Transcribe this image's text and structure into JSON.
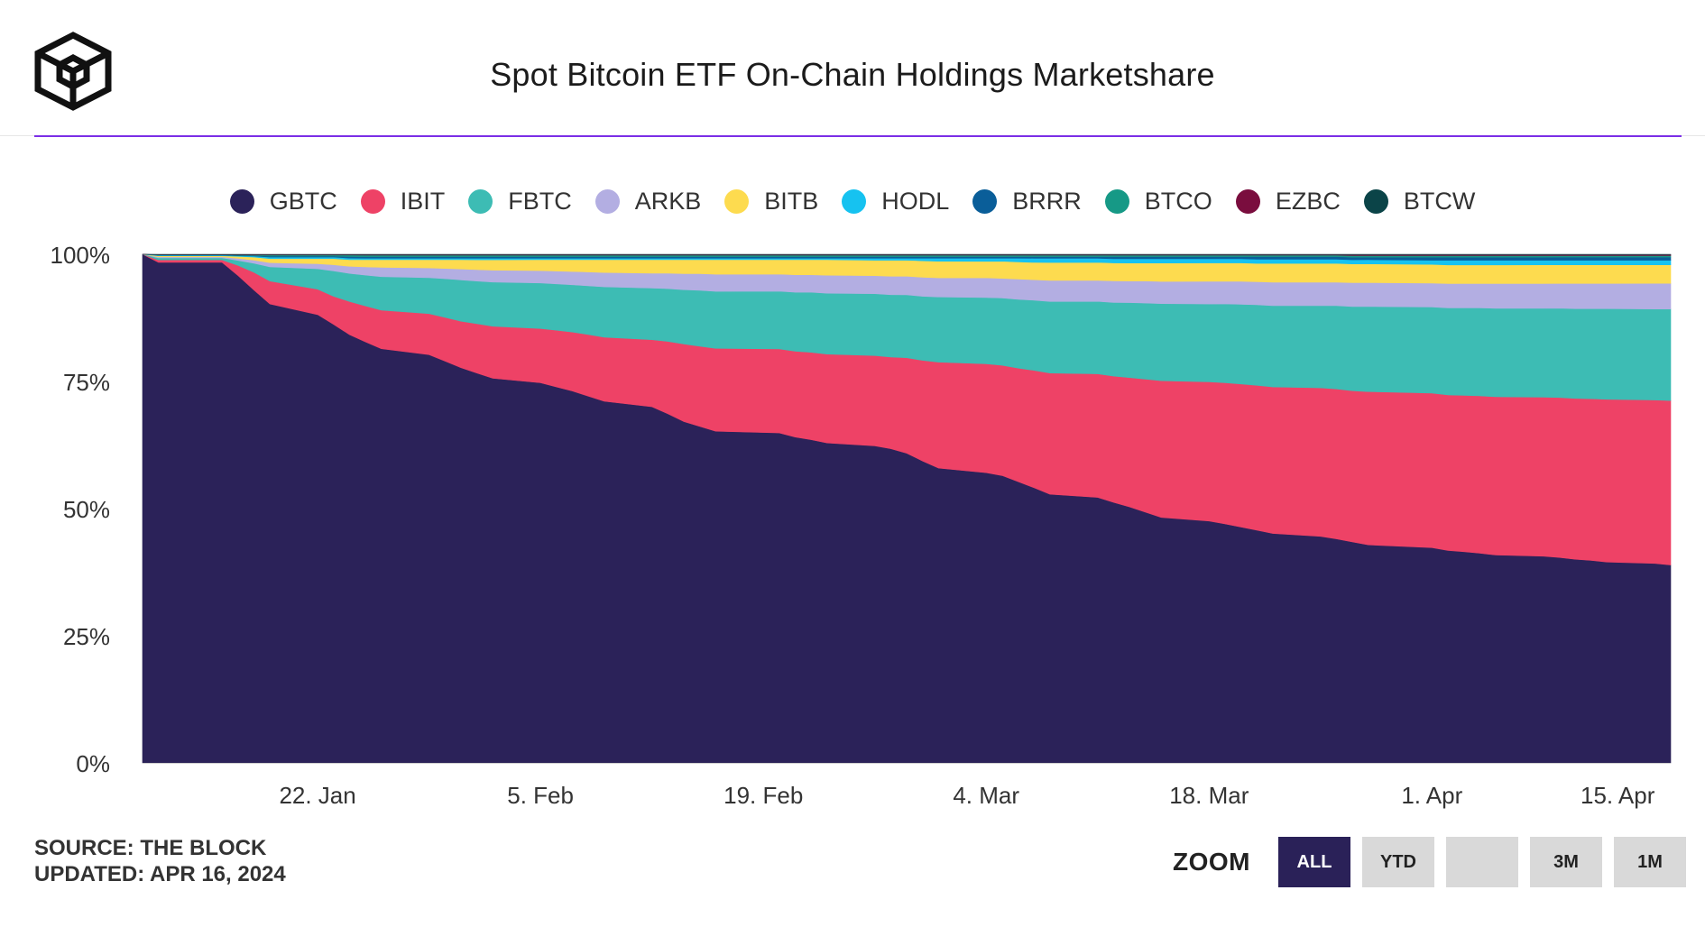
{
  "header": {
    "title": "Spot Bitcoin ETF On-Chain Holdings Marketshare",
    "logo_icon": "the-block-cube-logo"
  },
  "footer": {
    "source": "SOURCE: THE BLOCK",
    "updated": "UPDATED: APR 16, 2024"
  },
  "zoom": {
    "label": "ZOOM",
    "buttons": [
      {
        "label": "ALL",
        "active": true
      },
      {
        "label": "YTD",
        "active": false
      },
      {
        "label": "",
        "active": false
      },
      {
        "label": "3M",
        "active": false
      },
      {
        "label": "1M",
        "active": false
      }
    ]
  },
  "chart_data": {
    "type": "area",
    "stacking": "percent",
    "title": "Spot Bitcoin ETF On-Chain Holdings Marketshare",
    "xlabel": "",
    "ylabel": "",
    "ylim": [
      0,
      100
    ],
    "y_ticks": [
      "0%",
      "25%",
      "50%",
      "75%",
      "100%"
    ],
    "x_tick_labels": [
      "22. Jan",
      "5. Feb",
      "19. Feb",
      "4. Mar",
      "18. Mar",
      "1. Apr",
      "15. Apr"
    ],
    "x_tick_dates": [
      "2024-01-22",
      "2024-02-05",
      "2024-02-19",
      "2024-03-04",
      "2024-03-18",
      "2024-04-01",
      "2024-04-15"
    ],
    "legend_position": "top-center",
    "grid": false,
    "x": [
      "2024-01-11",
      "2024-01-12",
      "2024-01-16",
      "2024-01-17",
      "2024-01-18",
      "2024-01-19",
      "2024-01-22",
      "2024-01-23",
      "2024-01-24",
      "2024-01-25",
      "2024-01-26",
      "2024-01-29",
      "2024-01-30",
      "2024-01-31",
      "2024-02-01",
      "2024-02-02",
      "2024-02-05",
      "2024-02-06",
      "2024-02-07",
      "2024-02-08",
      "2024-02-09",
      "2024-02-12",
      "2024-02-13",
      "2024-02-14",
      "2024-02-15",
      "2024-02-16",
      "2024-02-20",
      "2024-02-21",
      "2024-02-22",
      "2024-02-23",
      "2024-02-26",
      "2024-02-27",
      "2024-02-28",
      "2024-02-29",
      "2024-03-01",
      "2024-03-04",
      "2024-03-05",
      "2024-03-06",
      "2024-03-07",
      "2024-03-08",
      "2024-03-11",
      "2024-03-12",
      "2024-03-13",
      "2024-03-14",
      "2024-03-15",
      "2024-03-18",
      "2024-03-19",
      "2024-03-20",
      "2024-03-21",
      "2024-03-22",
      "2024-03-25",
      "2024-03-26",
      "2024-03-27",
      "2024-03-28",
      "2024-04-01",
      "2024-04-02",
      "2024-04-03",
      "2024-04-04",
      "2024-04-05",
      "2024-04-08",
      "2024-04-09",
      "2024-04-10",
      "2024-04-11",
      "2024-04-12",
      "2024-04-15",
      "2024-04-16"
    ],
    "series": [
      {
        "name": "GBTC",
        "color": "#2b2259",
        "values": [
          100,
          98.5,
          98.5,
          96,
          93,
          90,
          88,
          86,
          84,
          82,
          80.5,
          79.5,
          78,
          76.5,
          75,
          74,
          73.5,
          73,
          72.5,
          71.5,
          70.5,
          69,
          67.5,
          66,
          65,
          64,
          64,
          63,
          62.5,
          62,
          61.5,
          61,
          60,
          58.5,
          57,
          56,
          55.5,
          54,
          52.5,
          51,
          50.5,
          49.5,
          48.5,
          47.5,
          46.5,
          46,
          45.5,
          45,
          44.5,
          44,
          43.5,
          43,
          42.5,
          42,
          41.5,
          41,
          40.8,
          40.5,
          40.2,
          40,
          39.8,
          39.5,
          39.3,
          39,
          38.8,
          38.5
        ]
      },
      {
        "name": "IBIT",
        "color": "#ee4266",
        "values": [
          0,
          0.5,
          0.5,
          2,
          3.5,
          4.5,
          5,
          5.5,
          6.5,
          7,
          7.5,
          8,
          8.5,
          9,
          9.5,
          10,
          10.5,
          11,
          11.5,
          12,
          12.5,
          13,
          14,
          15,
          15.5,
          16,
          16.3,
          16.6,
          16.9,
          17.2,
          17.5,
          17.8,
          18.5,
          19.5,
          20.5,
          21,
          21.3,
          21.8,
          22.4,
          23,
          23.5,
          24,
          24.5,
          25.2,
          25.9,
          26.5,
          26.9,
          27.3,
          27.7,
          28.1,
          28.5,
          28.8,
          29.1,
          29.5,
          29.8,
          30,
          30.2,
          30.4,
          30.6,
          30.8,
          31,
          31.2,
          31.4,
          31.6,
          31.8,
          32
        ]
      },
      {
        "name": "FBTC",
        "color": "#3dbcb4",
        "values": [
          0,
          0.4,
          0.4,
          1,
          1.8,
          2.8,
          4,
          5,
          5.5,
          6,
          6.5,
          7,
          7.5,
          8,
          8.2,
          8.5,
          8.8,
          9,
          9.2,
          9.5,
          9.8,
          10,
          10.2,
          10.5,
          10.8,
          11,
          11.2,
          11.4,
          11.6,
          11.8,
          12,
          12.1,
          12.2,
          12.4,
          12.6,
          12.8,
          13,
          13.2,
          13.4,
          13.6,
          13.8,
          14,
          14.2,
          14.4,
          14.6,
          14.8,
          15,
          15.2,
          15.4,
          15.6,
          15.8,
          16,
          16.2,
          16.4,
          16.6,
          16.8,
          16.9,
          17,
          17.1,
          17.2,
          17.3,
          17.4,
          17.5,
          17.6,
          17.7,
          17.8
        ]
      },
      {
        "name": "ARKB",
        "color": "#b3aee2",
        "values": [
          0,
          0.2,
          0.2,
          0.4,
          0.6,
          0.8,
          1,
          1.2,
          1.4,
          1.6,
          1.8,
          1.9,
          2,
          2.1,
          2.2,
          2.3,
          2.4,
          2.5,
          2.6,
          2.7,
          2.8,
          2.9,
          3,
          3.1,
          3.2,
          3.3,
          3.3,
          3.4,
          3.4,
          3.5,
          3.5,
          3.6,
          3.6,
          3.7,
          3.7,
          3.8,
          3.8,
          3.9,
          3.9,
          4,
          4,
          4.1,
          4.1,
          4.2,
          4.2,
          4.3,
          4.3,
          4.4,
          4.4,
          4.5,
          4.5,
          4.5,
          4.6,
          4.6,
          4.6,
          4.7,
          4.7,
          4.7,
          4.8,
          4.8,
          4.8,
          4.9,
          4.9,
          4.9,
          5,
          5
        ]
      },
      {
        "name": "BITB",
        "color": "#fddb4f",
        "values": [
          0,
          0.2,
          0.2,
          0.4,
          0.6,
          0.8,
          1,
          1.2,
          1.3,
          1.4,
          1.5,
          1.6,
          1.7,
          1.8,
          1.9,
          2,
          2.1,
          2.2,
          2.3,
          2.4,
          2.5,
          2.6,
          2.6,
          2.7,
          2.7,
          2.8,
          2.8,
          2.9,
          2.9,
          3,
          3,
          3.1,
          3.1,
          3.2,
          3.2,
          3.2,
          3.3,
          3.3,
          3.3,
          3.4,
          3.4,
          3.4,
          3.4,
          3.4,
          3.5,
          3.5,
          3.5,
          3.5,
          3.5,
          3.6,
          3.6,
          3.6,
          3.6,
          3.6,
          3.6,
          3.6,
          3.6,
          3.6,
          3.6,
          3.6,
          3.6,
          3.6,
          3.6,
          3.6,
          3.6,
          3.6
        ]
      },
      {
        "name": "HODL",
        "color": "#16c2f0",
        "values": [
          0,
          0.1,
          0.1,
          0.1,
          0.2,
          0.3,
          0.3,
          0.3,
          0.3,
          0.3,
          0.3,
          0.3,
          0.3,
          0.3,
          0.3,
          0.3,
          0.3,
          0.3,
          0.3,
          0.3,
          0.3,
          0.3,
          0.3,
          0.3,
          0.3,
          0.3,
          0.3,
          0.3,
          0.3,
          0.3,
          0.4,
          0.4,
          0.4,
          0.5,
          0.6,
          0.6,
          0.6,
          0.7,
          0.8,
          0.8,
          0.8,
          0.8,
          0.8,
          0.8,
          0.8,
          0.8,
          0.8,
          0.8,
          0.8,
          0.8,
          0.8,
          0.8,
          0.8,
          0.8,
          0.8,
          0.9,
          0.9,
          0.9,
          0.9,
          0.9,
          0.9,
          0.9,
          0.9,
          0.9,
          0.9,
          0.9
        ]
      },
      {
        "name": "BRRR",
        "color": "#0a5e99",
        "values": [
          0,
          0.05,
          0.05,
          0.1,
          0.1,
          0.2,
          0.2,
          0.2,
          0.3,
          0.3,
          0.3,
          0.3,
          0.3,
          0.3,
          0.3,
          0.3,
          0.3,
          0.3,
          0.3,
          0.3,
          0.3,
          0.3,
          0.3,
          0.3,
          0.3,
          0.3,
          0.3,
          0.3,
          0.3,
          0.3,
          0.3,
          0.3,
          0.3,
          0.3,
          0.3,
          0.3,
          0.3,
          0.3,
          0.3,
          0.3,
          0.3,
          0.4,
          0.4,
          0.4,
          0.4,
          0.4,
          0.4,
          0.4,
          0.5,
          0.5,
          0.5,
          0.5,
          0.5,
          0.5,
          0.6,
          0.6,
          0.6,
          0.6,
          0.6,
          0.6,
          0.6,
          0.6,
          0.6,
          0.6,
          0.6,
          0.6
        ]
      },
      {
        "name": "BTCO",
        "color": "#169986",
        "values": [
          0,
          0.05,
          0.05,
          0.1,
          0.1,
          0.2,
          0.2,
          0.2,
          0.3,
          0.3,
          0.3,
          0.3,
          0.3,
          0.3,
          0.3,
          0.3,
          0.3,
          0.3,
          0.3,
          0.3,
          0.3,
          0.3,
          0.3,
          0.3,
          0.3,
          0.3,
          0.3,
          0.3,
          0.3,
          0.3,
          0.3,
          0.3,
          0.3,
          0.3,
          0.3,
          0.3,
          0.3,
          0.3,
          0.3,
          0.3,
          0.3,
          0.3,
          0.3,
          0.3,
          0.3,
          0.3,
          0.3,
          0.3,
          0.3,
          0.3,
          0.3,
          0.3,
          0.3,
          0.3,
          0.3,
          0.3,
          0.3,
          0.3,
          0.3,
          0.3,
          0.3,
          0.3,
          0.3,
          0.3,
          0.3,
          0.3
        ]
      },
      {
        "name": "EZBC",
        "color": "#7a0d3e",
        "values": [
          0,
          0.05,
          0.05,
          0.05,
          0.1,
          0.1,
          0.1,
          0.1,
          0.1,
          0.1,
          0.1,
          0.1,
          0.1,
          0.1,
          0.1,
          0.1,
          0.1,
          0.1,
          0.1,
          0.1,
          0.1,
          0.1,
          0.1,
          0.1,
          0.1,
          0.1,
          0.1,
          0.1,
          0.1,
          0.1,
          0.1,
          0.1,
          0.1,
          0.1,
          0.1,
          0.1,
          0.1,
          0.1,
          0.1,
          0.1,
          0.1,
          0.1,
          0.1,
          0.1,
          0.1,
          0.1,
          0.1,
          0.1,
          0.1,
          0.1,
          0.1,
          0.1,
          0.2,
          0.2,
          0.2,
          0.2,
          0.2,
          0.2,
          0.2,
          0.2,
          0.2,
          0.2,
          0.2,
          0.2,
          0.2,
          0.2
        ]
      },
      {
        "name": "BTCW",
        "color": "#0b4448",
        "values": [
          0,
          0.05,
          0.05,
          0.05,
          0.05,
          0.05,
          0.05,
          0.05,
          0.05,
          0.05,
          0.05,
          0.05,
          0.05,
          0.05,
          0.05,
          0.05,
          0.05,
          0.05,
          0.05,
          0.05,
          0.05,
          0.05,
          0.05,
          0.05,
          0.05,
          0.05,
          0.05,
          0.05,
          0.05,
          0.05,
          0.05,
          0.05,
          0.05,
          0.05,
          0.05,
          0.05,
          0.05,
          0.05,
          0.05,
          0.05,
          0.05,
          0.05,
          0.05,
          0.05,
          0.05,
          0.05,
          0.05,
          0.05,
          0.05,
          0.05,
          0.05,
          0.05,
          0.05,
          0.05,
          0.05,
          0.05,
          0.05,
          0.05,
          0.05,
          0.05,
          0.05,
          0.05,
          0.05,
          0.05,
          0.05,
          0.05
        ]
      }
    ]
  }
}
